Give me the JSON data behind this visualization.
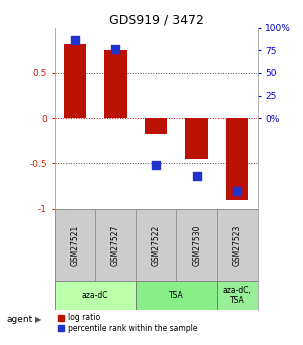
{
  "title": "GDS919 / 3472",
  "samples": [
    "GSM27521",
    "GSM27527",
    "GSM27522",
    "GSM27530",
    "GSM27523"
  ],
  "log_ratios": [
    0.82,
    0.75,
    -0.18,
    -0.45,
    -0.9
  ],
  "percentiles": [
    0.93,
    0.88,
    0.24,
    0.18,
    0.1
  ],
  "bar_color": "#bb1100",
  "dot_color": "#2233cc",
  "ylim": [
    -1,
    1
  ],
  "yticks_left": [
    -1,
    -0.5,
    0,
    0.5
  ],
  "ytick_labels_left": [
    "-1",
    "-0.5",
    "0",
    "0.5"
  ],
  "yticks_right": [
    0.0,
    0.25,
    0.5,
    0.75,
    1.0
  ],
  "ytick_labels_right": [
    "0%",
    "25",
    "50",
    "75",
    "100%"
  ],
  "hlines": [
    -0.5,
    0,
    0.5
  ],
  "agent_groups": [
    {
      "label": "aza-dC",
      "indices": [
        0,
        1
      ],
      "color": "#bbffaa"
    },
    {
      "label": "TSA",
      "indices": [
        2,
        3
      ],
      "color": "#88ee88"
    },
    {
      "label": "aza-dC,\nTSA",
      "indices": [
        4
      ],
      "color": "#99ee99"
    }
  ],
  "agent_label": "agent",
  "legend_red": "log ratio",
  "legend_blue": "percentile rank within the sample",
  "background_color": "#ffffff",
  "tick_color_left": "#cc2200",
  "tick_color_right": "#0000cc",
  "bar_width": 0.55,
  "dot_size": 28
}
